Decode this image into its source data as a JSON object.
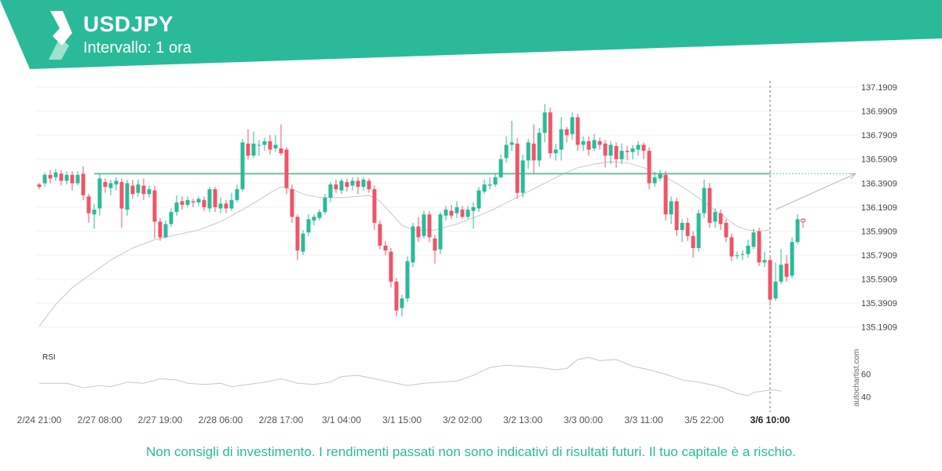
{
  "header": {
    "symbol": "USDJPY",
    "interval": "Intervallo: 1 ora",
    "brand_color": "#2bba99"
  },
  "footer": {
    "disclaimer": "Non consigli di investimento. I rendimenti passati non sono indicativi di risultati futuri. Il tuo capitale è a rischio."
  },
  "watermark": "autochartist.com",
  "chart_data": {
    "type": "candlestick",
    "y_ticks": [
      "137.1909",
      "136.9909",
      "136.7909",
      "136.5909",
      "136.3909",
      "136.1909",
      "135.9909",
      "135.7909",
      "135.5909",
      "135.3909",
      "135.1909"
    ],
    "ylim": [
      135.15,
      137.23
    ],
    "x_ticks": [
      {
        "label": "2/24 21:00",
        "index": 0
      },
      {
        "label": "2/27 08:00",
        "index": 11
      },
      {
        "label": "2/27 19:00",
        "index": 22
      },
      {
        "label": "2/28 06:00",
        "index": 33
      },
      {
        "label": "2/28 17:00",
        "index": 44
      },
      {
        "label": "3/1 04:00",
        "index": 55
      },
      {
        "label": "3/1 15:00",
        "index": 66
      },
      {
        "label": "3/2 02:00",
        "index": 77
      },
      {
        "label": "3/2 13:00",
        "index": 88
      },
      {
        "label": "3/3 00:00",
        "index": 99
      },
      {
        "label": "3/3 11:00",
        "index": 110
      },
      {
        "label": "3/5 22:00",
        "index": 121
      },
      {
        "label": "3/6 10:00",
        "index": 133,
        "highlight": true
      }
    ],
    "up_color": "#2bba99",
    "down_color": "#ef5469",
    "resistance_level": 136.47,
    "resistance_color": "#6cc29f",
    "projection": {
      "from_index": 134,
      "from_price": 136.17,
      "to_price": 136.47
    },
    "current_index": 133,
    "ma_color": "#c8c8c8",
    "ma": [
      [
        0,
        135.2
      ],
      [
        3,
        135.38
      ],
      [
        6,
        135.52
      ],
      [
        9,
        135.62
      ],
      [
        13,
        135.75
      ],
      [
        17,
        135.85
      ],
      [
        21,
        135.92
      ],
      [
        25,
        135.96
      ],
      [
        29,
        136.0
      ],
      [
        33,
        136.07
      ],
      [
        37,
        136.17
      ],
      [
        40,
        136.25
      ],
      [
        42,
        136.31
      ],
      [
        44,
        136.36
      ],
      [
        46,
        136.34
      ],
      [
        48,
        136.3
      ],
      [
        51,
        136.27
      ],
      [
        55,
        136.27
      ],
      [
        58,
        136.28
      ],
      [
        60,
        136.29
      ],
      [
        62,
        136.24
      ],
      [
        64,
        136.14
      ],
      [
        66,
        136.04
      ],
      [
        68,
        136.0
      ],
      [
        72,
        136.0
      ],
      [
        76,
        136.05
      ],
      [
        80,
        136.12
      ],
      [
        83,
        136.18
      ],
      [
        86,
        136.25
      ],
      [
        89,
        136.32
      ],
      [
        92,
        136.39
      ],
      [
        95,
        136.46
      ],
      [
        98,
        136.52
      ],
      [
        101,
        136.55
      ],
      [
        104,
        136.57
      ],
      [
        107,
        136.56
      ],
      [
        110,
        136.52
      ],
      [
        113,
        136.46
      ],
      [
        116,
        136.39
      ],
      [
        119,
        136.3
      ],
      [
        122,
        136.2
      ],
      [
        125,
        136.1
      ],
      [
        127,
        136.03
      ],
      [
        129,
        136.0
      ],
      [
        131,
        135.99
      ],
      [
        133,
        136.0
      ]
    ],
    "candles": [
      [
        136.38,
        136.36,
        136.39,
        136.34
      ],
      [
        136.39,
        136.46,
        136.48,
        136.36
      ],
      [
        136.46,
        136.43,
        136.5,
        136.39
      ],
      [
        136.44,
        136.48,
        136.51,
        136.41
      ],
      [
        136.47,
        136.41,
        136.5,
        136.37
      ],
      [
        136.41,
        136.46,
        136.49,
        136.38
      ],
      [
        136.46,
        136.39,
        136.49,
        136.33
      ],
      [
        136.39,
        136.46,
        136.49,
        136.37
      ],
      [
        136.47,
        136.29,
        136.53,
        136.25
      ],
      [
        136.28,
        136.14,
        136.3,
        136.06
      ],
      [
        136.13,
        136.17,
        136.22,
        136.01
      ],
      [
        136.18,
        136.43,
        136.47,
        136.12
      ],
      [
        136.4,
        136.36,
        136.43,
        136.31
      ],
      [
        136.35,
        136.39,
        136.42,
        136.29
      ],
      [
        136.38,
        136.41,
        136.44,
        136.33
      ],
      [
        136.4,
        136.18,
        136.43,
        136.02
      ],
      [
        136.17,
        136.39,
        136.42,
        136.12
      ],
      [
        136.37,
        136.3,
        136.42,
        136.26
      ],
      [
        136.31,
        136.38,
        136.42,
        136.28
      ],
      [
        136.37,
        136.3,
        136.43,
        136.25
      ],
      [
        136.3,
        136.34,
        136.37,
        136.27
      ],
      [
        136.33,
        136.07,
        136.37,
        135.93
      ],
      [
        136.07,
        135.94,
        136.1,
        135.91
      ],
      [
        135.94,
        136.05,
        136.08,
        135.93
      ],
      [
        136.05,
        136.15,
        136.18,
        136.03
      ],
      [
        136.15,
        136.23,
        136.29,
        136.12
      ],
      [
        136.24,
        136.21,
        136.28,
        136.17
      ],
      [
        136.21,
        136.25,
        136.28,
        136.19
      ],
      [
        136.24,
        136.23,
        136.26,
        136.19
      ],
      [
        136.23,
        136.26,
        136.28,
        136.2
      ],
      [
        136.25,
        136.19,
        136.28,
        136.16
      ],
      [
        136.18,
        136.34,
        136.36,
        136.15
      ],
      [
        136.34,
        136.19,
        136.36,
        136.15
      ],
      [
        136.18,
        136.22,
        136.27,
        136.14
      ],
      [
        136.22,
        136.18,
        136.25,
        136.14
      ],
      [
        136.18,
        136.25,
        136.31,
        136.16
      ],
      [
        136.25,
        136.34,
        136.38,
        136.23
      ],
      [
        136.34,
        136.73,
        136.76,
        136.32
      ],
      [
        136.72,
        136.62,
        136.84,
        136.59
      ],
      [
        136.62,
        136.72,
        136.82,
        136.6
      ],
      [
        136.71,
        136.71,
        136.75,
        136.62
      ],
      [
        136.71,
        136.74,
        136.77,
        136.66
      ],
      [
        136.74,
        136.67,
        136.79,
        136.63
      ],
      [
        136.68,
        136.71,
        136.79,
        136.65
      ],
      [
        136.68,
        136.64,
        136.88,
        136.62
      ],
      [
        136.67,
        136.35,
        136.69,
        136.3
      ],
      [
        136.34,
        136.11,
        136.38,
        136.06
      ],
      [
        136.11,
        135.83,
        136.13,
        135.75
      ],
      [
        135.82,
        135.97,
        136.0,
        135.79
      ],
      [
        135.98,
        136.09,
        136.13,
        135.95
      ],
      [
        136.08,
        136.11,
        136.13,
        136.04
      ],
      [
        136.1,
        136.15,
        136.17,
        136.08
      ],
      [
        136.15,
        136.27,
        136.3,
        136.13
      ],
      [
        136.27,
        136.38,
        136.4,
        136.23
      ],
      [
        136.38,
        136.34,
        136.42,
        136.31
      ],
      [
        136.33,
        136.41,
        136.43,
        136.3
      ],
      [
        136.4,
        136.36,
        136.43,
        136.32
      ],
      [
        136.37,
        136.41,
        136.44,
        136.33
      ],
      [
        136.41,
        136.36,
        136.44,
        136.3
      ],
      [
        136.36,
        136.42,
        136.44,
        136.33
      ],
      [
        136.41,
        136.34,
        136.43,
        136.31
      ],
      [
        136.34,
        136.06,
        136.37,
        136.0
      ],
      [
        136.05,
        135.87,
        136.08,
        135.84
      ],
      [
        135.87,
        135.83,
        135.91,
        135.79
      ],
      [
        135.82,
        135.57,
        135.85,
        135.52
      ],
      [
        135.57,
        135.33,
        135.6,
        135.28
      ],
      [
        135.35,
        135.43,
        135.46,
        135.28
      ],
      [
        135.43,
        135.74,
        135.78,
        135.4
      ],
      [
        135.73,
        136.03,
        136.06,
        135.69
      ],
      [
        136.03,
        135.94,
        136.11,
        135.9
      ],
      [
        135.95,
        136.13,
        136.16,
        135.93
      ],
      [
        136.13,
        135.94,
        136.16,
        135.9
      ],
      [
        135.93,
        135.83,
        135.96,
        135.72
      ],
      [
        135.84,
        136.13,
        136.15,
        135.8
      ],
      [
        136.12,
        136.17,
        136.2,
        136.08
      ],
      [
        136.16,
        136.12,
        136.21,
        136.09
      ],
      [
        136.14,
        136.19,
        136.24,
        136.1
      ],
      [
        136.17,
        136.11,
        136.2,
        136.09
      ],
      [
        136.11,
        136.17,
        136.2,
        136.09
      ],
      [
        136.16,
        136.19,
        136.23,
        136.01
      ],
      [
        136.18,
        136.33,
        136.36,
        136.15
      ],
      [
        136.32,
        136.38,
        136.42,
        136.3
      ],
      [
        136.37,
        136.38,
        136.44,
        136.34
      ],
      [
        136.38,
        136.44,
        136.47,
        136.36
      ],
      [
        136.44,
        136.59,
        136.63,
        136.43
      ],
      [
        136.6,
        136.71,
        136.78,
        136.56
      ],
      [
        136.71,
        136.73,
        136.91,
        136.66
      ],
      [
        136.72,
        136.31,
        136.77,
        136.26
      ],
      [
        136.31,
        136.58,
        136.63,
        136.27
      ],
      [
        136.58,
        136.73,
        136.76,
        136.51
      ],
      [
        136.72,
        136.58,
        136.88,
        136.47
      ],
      [
        136.58,
        136.81,
        136.85,
        136.53
      ],
      [
        136.81,
        136.98,
        137.05,
        136.73
      ],
      [
        136.98,
        136.64,
        137.02,
        136.6
      ],
      [
        136.64,
        136.67,
        136.72,
        136.58
      ],
      [
        136.67,
        136.84,
        136.94,
        136.58
      ],
      [
        136.84,
        136.79,
        136.86,
        136.73
      ],
      [
        136.8,
        136.94,
        136.98,
        136.75
      ],
      [
        136.94,
        136.71,
        136.97,
        136.66
      ],
      [
        136.71,
        136.74,
        136.78,
        136.66
      ],
      [
        136.74,
        136.67,
        136.78,
        136.62
      ],
      [
        136.68,
        136.75,
        136.8,
        136.66
      ],
      [
        136.74,
        136.71,
        136.77,
        136.67
      ],
      [
        136.72,
        136.62,
        136.75,
        136.52
      ],
      [
        136.62,
        136.71,
        136.74,
        136.55
      ],
      [
        136.7,
        136.59,
        136.73,
        136.52
      ],
      [
        136.59,
        136.66,
        136.72,
        136.55
      ],
      [
        136.66,
        136.65,
        136.7,
        136.58
      ],
      [
        136.65,
        136.68,
        136.71,
        136.59
      ],
      [
        136.67,
        136.71,
        136.74,
        136.62
      ],
      [
        136.71,
        136.66,
        136.73,
        136.59
      ],
      [
        136.66,
        136.39,
        136.69,
        136.34
      ],
      [
        136.39,
        136.44,
        136.48,
        136.36
      ],
      [
        136.43,
        136.47,
        136.5,
        136.41
      ],
      [
        136.46,
        136.13,
        136.49,
        136.08
      ],
      [
        136.13,
        136.24,
        136.28,
        136.05
      ],
      [
        136.24,
        136.0,
        136.27,
        135.95
      ],
      [
        136.0,
        136.06,
        136.09,
        135.9
      ],
      [
        136.06,
        135.95,
        136.1,
        135.91
      ],
      [
        135.95,
        135.85,
        135.99,
        135.77
      ],
      [
        135.85,
        136.14,
        136.17,
        135.82
      ],
      [
        136.14,
        136.35,
        136.42,
        136.1
      ],
      [
        136.35,
        136.06,
        136.39,
        136.02
      ],
      [
        136.07,
        136.15,
        136.18,
        136.02
      ],
      [
        136.14,
        136.05,
        136.17,
        136.0
      ],
      [
        136.06,
        135.94,
        136.09,
        135.9
      ],
      [
        135.94,
        135.78,
        135.97,
        135.74
      ],
      [
        135.79,
        135.79,
        135.82,
        135.76
      ],
      [
        135.8,
        135.8,
        135.83,
        135.75
      ],
      [
        135.8,
        135.87,
        135.92,
        135.77
      ],
      [
        135.86,
        135.98,
        136.01,
        135.84
      ],
      [
        135.99,
        135.73,
        136.02,
        135.7
      ],
      [
        135.73,
        135.75,
        135.82,
        135.69
      ],
      [
        135.75,
        135.42,
        135.78,
        135.37
      ],
      [
        135.43,
        135.57,
        135.73,
        135.41
      ],
      [
        135.57,
        135.71,
        135.84,
        135.55
      ],
      [
        135.72,
        135.61,
        135.79,
        135.57
      ],
      [
        135.62,
        135.9,
        135.94,
        135.6
      ],
      [
        135.9,
        136.09,
        136.13,
        135.88
      ],
      [
        136.09,
        136.07,
        136.1,
        136.02
      ]
    ],
    "candle_gaps": [
      [
        127,
        128
      ],
      [
        133,
        134
      ]
    ],
    "rsi_label": "RSI",
    "rsi_ticks": [
      "60",
      "40"
    ],
    "rsi_ylim": [
      30,
      82
    ],
    "rsi_color": "#c8c8c8",
    "rsi": [
      [
        0,
        52
      ],
      [
        5,
        52
      ],
      [
        8,
        48
      ],
      [
        11,
        50
      ],
      [
        13,
        49
      ],
      [
        16,
        53
      ],
      [
        19,
        52
      ],
      [
        22,
        56
      ],
      [
        25,
        55
      ],
      [
        27,
        52
      ],
      [
        30,
        51
      ],
      [
        33,
        52
      ],
      [
        35,
        49
      ],
      [
        38,
        51
      ],
      [
        41,
        53
      ],
      [
        44,
        56
      ],
      [
        47,
        52
      ],
      [
        50,
        51
      ],
      [
        53,
        53
      ],
      [
        55,
        58
      ],
      [
        58,
        59
      ],
      [
        61,
        56
      ],
      [
        64,
        53
      ],
      [
        67,
        50
      ],
      [
        70,
        52
      ],
      [
        73,
        53
      ],
      [
        76,
        54
      ],
      [
        79,
        59
      ],
      [
        82,
        66
      ],
      [
        85,
        68
      ],
      [
        88,
        67
      ],
      [
        91,
        66
      ],
      [
        94,
        64
      ],
      [
        96,
        65
      ],
      [
        98,
        73
      ],
      [
        100,
        75
      ],
      [
        102,
        72
      ],
      [
        105,
        73
      ],
      [
        108,
        67
      ],
      [
        111,
        64
      ],
      [
        114,
        60
      ],
      [
        117,
        55
      ],
      [
        120,
        53
      ],
      [
        123,
        50
      ],
      [
        125,
        47
      ],
      [
        127,
        43
      ],
      [
        129,
        41
      ],
      [
        130,
        44
      ],
      [
        133,
        46
      ],
      [
        134,
        46
      ],
      [
        135,
        45
      ]
    ]
  }
}
